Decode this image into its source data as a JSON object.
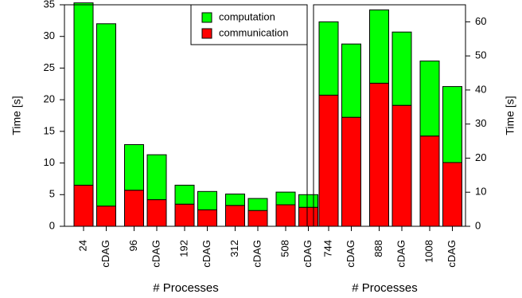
{
  "chart_data": [
    {
      "type": "bar",
      "stacked": true,
      "categories": [
        "24",
        "cDAG",
        "96",
        "cDAG",
        "192",
        "cDAG",
        "312",
        "cDAG",
        "508",
        "cDAG"
      ],
      "series": [
        {
          "name": "communication",
          "color": "#ff0000",
          "values": [
            6.5,
            3.2,
            5.7,
            4.2,
            3.5,
            2.6,
            3.3,
            2.5,
            3.4,
            3.0
          ]
        },
        {
          "name": "computation",
          "color": "#00ff00",
          "values": [
            28.8,
            28.8,
            7.2,
            7.1,
            3.0,
            2.9,
            1.8,
            1.9,
            2.0,
            2.0
          ]
        }
      ],
      "ylabel": "Time [s]",
      "xlabel": "# Processes",
      "ylim": [
        0,
        35
      ],
      "yticks": [
        0,
        5,
        10,
        15,
        20,
        25,
        30,
        35
      ],
      "y_axis_side": "left",
      "legend": {
        "position": "top-right",
        "entries": [
          {
            "label": "computation",
            "color": "#00ff00"
          },
          {
            "label": "communication",
            "color": "#ff0000"
          }
        ]
      },
      "grid": false
    },
    {
      "type": "bar",
      "stacked": true,
      "categories": [
        "744",
        "cDAG",
        "888",
        "cDAG",
        "1008",
        "cDAG"
      ],
      "series": [
        {
          "name": "communication",
          "color": "#ff0000",
          "values": [
            38.5,
            32.0,
            42.0,
            35.5,
            26.5,
            18.7
          ]
        },
        {
          "name": "computation",
          "color": "#00ff00",
          "values": [
            21.5,
            21.5,
            21.5,
            21.5,
            22.0,
            22.3
          ]
        }
      ],
      "ylabel": "Time [s]",
      "xlabel": "# Processes",
      "ylim": [
        0,
        65
      ],
      "yticks": [
        0,
        10,
        20,
        30,
        40,
        50,
        60
      ],
      "y_axis_side": "right",
      "grid": false
    }
  ]
}
